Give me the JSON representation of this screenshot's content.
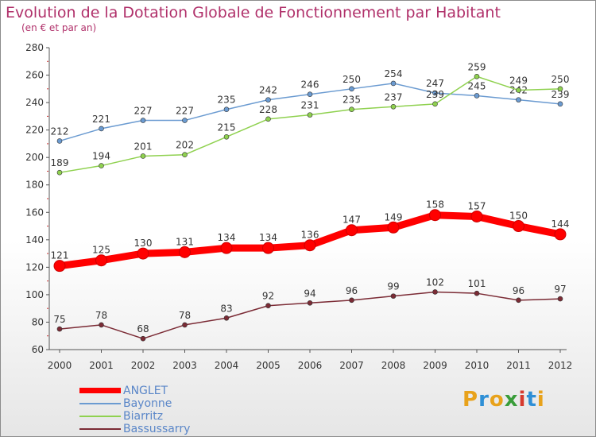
{
  "title": "Evolution de la Dotation Globale de Fonctionnement par Habitant",
  "subtitle": "(en € et par an)",
  "brand": {
    "letters": [
      "P",
      "r",
      "o",
      "x",
      "i",
      "t",
      "i"
    ],
    "colors": [
      "#e8a21b",
      "#2e8fd6",
      "#e8a21b",
      "#3a9d3a",
      "#d63a2e",
      "#2e8fd6",
      "#e8a21b"
    ]
  },
  "chart_data": {
    "type": "line",
    "title": "Evolution de la Dotation Globale de Fonctionnement par Habitant",
    "subtitle": "(en € et par an)",
    "x": [
      "2000",
      "2001",
      "2002",
      "2003",
      "2004",
      "2005",
      "2006",
      "2007",
      "2008",
      "2009",
      "2010",
      "2011",
      "2012"
    ],
    "ylim": [
      60,
      280
    ],
    "yticks": [
      "60",
      "80",
      "100",
      "120",
      "140",
      "160",
      "180",
      "200",
      "220",
      "240",
      "260",
      "280"
    ],
    "grid": false,
    "legend_position": "bottom-left",
    "series": [
      {
        "name": "Bayonne",
        "color": "#6b9bd1",
        "values": [
          212,
          221,
          227,
          227,
          235,
          242,
          246,
          250,
          254,
          247,
          245,
          242,
          239
        ]
      },
      {
        "name": "Biarritz",
        "color": "#8fd14f",
        "values": [
          189,
          194,
          201,
          202,
          215,
          228,
          231,
          235,
          237,
          239,
          259,
          249,
          250
        ]
      },
      {
        "name": "Bassussarry",
        "color": "#7b2b35",
        "values": [
          75,
          78,
          68,
          78,
          83,
          92,
          94,
          96,
          99,
          102,
          101,
          96,
          97
        ]
      },
      {
        "name": "ANGLET",
        "color": "#ff0000",
        "values": [
          121,
          125,
          130,
          131,
          134,
          134,
          136,
          147,
          149,
          158,
          157,
          150,
          144
        ]
      }
    ],
    "legend": [
      "ANGLET",
      "Bayonne",
      "Biarritz",
      "Bassussarry"
    ]
  }
}
